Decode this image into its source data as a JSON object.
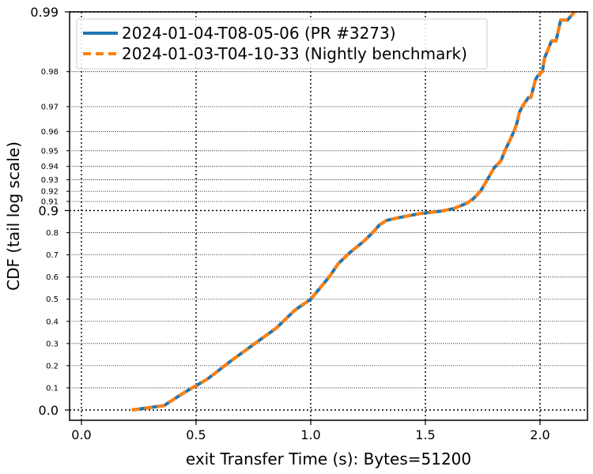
{
  "chart_data": {
    "type": "line",
    "xlabel": "exit Transfer Time (s): Bytes=51200",
    "ylabel": "CDF (tail log scale)",
    "xlim": [
      -0.05,
      2.2
    ],
    "x_ticks": [
      "0.0",
      "0.5",
      "1.0",
      "1.5",
      "2.0"
    ],
    "y_major_ticks": [
      "0.0",
      "0.9",
      "0.99"
    ],
    "y_minor_ticks": [
      "0.1",
      "0.2",
      "0.3",
      "0.4",
      "0.5",
      "0.6",
      "0.7",
      "0.8",
      "0.91",
      "0.92",
      "0.93",
      "0.94",
      "0.95",
      "0.96",
      "0.97",
      "0.98"
    ],
    "y_scale": "tail log",
    "grid": true,
    "legend_position": "top-left",
    "series": [
      {
        "name": "2024-01-04-T08-05-06 (PR #3273)",
        "color": "#1f77b4",
        "style": "solid",
        "x": [
          0.22,
          0.36,
          0.45,
          0.55,
          0.65,
          0.73,
          0.85,
          0.93,
          1.0,
          1.04,
          1.08,
          1.12,
          1.17,
          1.23,
          1.27,
          1.3,
          1.33,
          1.37,
          1.42,
          1.47,
          1.53,
          1.57,
          1.62,
          1.68,
          1.71,
          1.74,
          1.77,
          1.8,
          1.83,
          1.85,
          1.87,
          1.89,
          1.9,
          1.91,
          1.93,
          1.95,
          1.96,
          1.98,
          1.99,
          2.01,
          2.02,
          2.03,
          2.05,
          2.07,
          2.09,
          2.12,
          2.15
        ],
        "y": [
          0.0,
          0.02,
          0.08,
          0.14,
          0.22,
          0.28,
          0.37,
          0.45,
          0.5,
          0.55,
          0.6,
          0.66,
          0.71,
          0.76,
          0.8,
          0.835,
          0.855,
          0.865,
          0.875,
          0.885,
          0.893,
          0.898,
          0.902,
          0.908,
          0.913,
          0.92,
          0.93,
          0.939,
          0.944,
          0.951,
          0.956,
          0.961,
          0.964,
          0.968,
          0.971,
          0.973,
          0.973,
          0.978,
          0.979,
          0.98,
          0.983,
          0.984,
          0.986,
          0.986,
          0.989,
          0.989,
          0.99
        ]
      },
      {
        "name": "2024-01-03-T04-10-33 (Nightly benchmark)",
        "color": "#ff7f0e",
        "style": "dashed",
        "x": [
          0.22,
          0.36,
          0.45,
          0.55,
          0.65,
          0.73,
          0.85,
          0.93,
          1.0,
          1.04,
          1.08,
          1.12,
          1.17,
          1.23,
          1.27,
          1.3,
          1.33,
          1.37,
          1.42,
          1.47,
          1.53,
          1.57,
          1.62,
          1.68,
          1.71,
          1.74,
          1.77,
          1.8,
          1.83,
          1.85,
          1.87,
          1.89,
          1.9,
          1.91,
          1.93,
          1.95,
          1.96,
          1.98,
          1.99,
          2.01,
          2.02,
          2.03,
          2.05,
          2.07,
          2.09,
          2.12,
          2.15
        ],
        "y": [
          0.0,
          0.02,
          0.08,
          0.14,
          0.22,
          0.28,
          0.37,
          0.45,
          0.5,
          0.55,
          0.6,
          0.66,
          0.71,
          0.76,
          0.8,
          0.835,
          0.855,
          0.865,
          0.875,
          0.885,
          0.893,
          0.898,
          0.902,
          0.908,
          0.913,
          0.92,
          0.93,
          0.939,
          0.944,
          0.951,
          0.956,
          0.961,
          0.964,
          0.968,
          0.971,
          0.973,
          0.973,
          0.978,
          0.979,
          0.98,
          0.983,
          0.984,
          0.986,
          0.986,
          0.989,
          0.989,
          0.99
        ]
      }
    ]
  }
}
